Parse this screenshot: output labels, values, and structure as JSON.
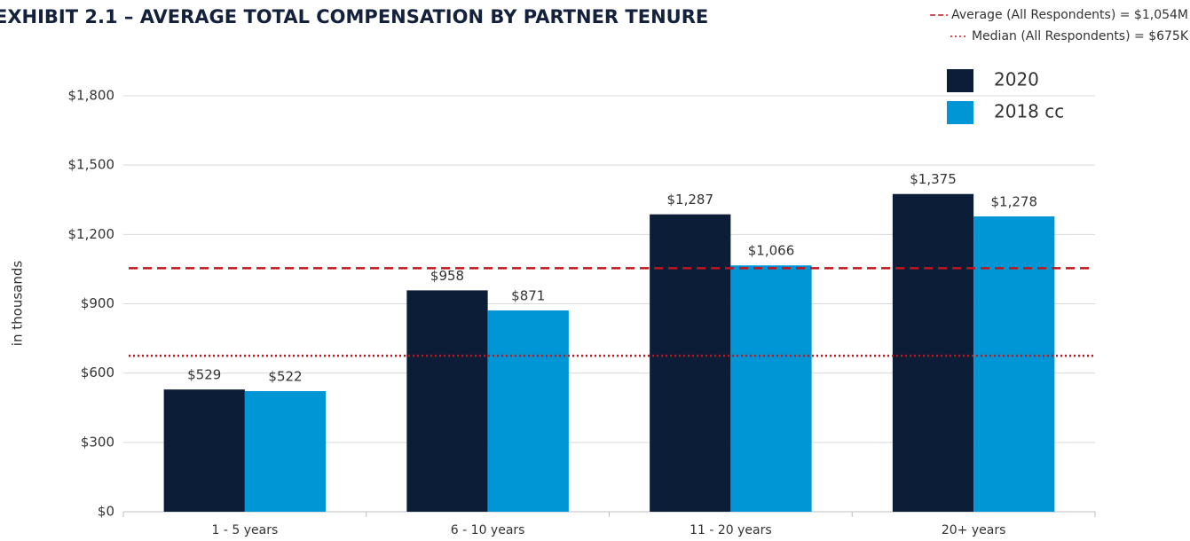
{
  "chart_data": {
    "type": "bar",
    "title": "EXHIBIT 2.1 – AVERAGE TOTAL COMPENSATION BY PARTNER TENURE",
    "y_label": "in thousands",
    "categories": [
      "1 - 5 years",
      "6 - 10 years",
      "11 - 20 years",
      "20+ years"
    ],
    "series": [
      {
        "name": "2020",
        "color": "#0c1d38",
        "values": [
          529,
          958,
          1287,
          1375
        ],
        "value_labels": [
          "$529",
          "$958",
          "$1,287",
          "$1,375"
        ]
      },
      {
        "name": "2018 cc",
        "color": "#0096d6",
        "values": [
          522,
          871,
          1066,
          1278
        ],
        "value_labels": [
          "$522",
          "$871",
          "$1,066",
          "$1,278"
        ]
      }
    ],
    "reference_lines": [
      {
        "label": "Average (All Respondents) = $1,054M",
        "value": 1054,
        "color": "#c0151b",
        "style": "dashed"
      },
      {
        "label": "Median  (All Respondents) = $675K",
        "value": 675,
        "color": "#c0151b",
        "style": "dotted"
      }
    ],
    "ylim": [
      0,
      1800
    ],
    "yticks": [
      {
        "value": 0,
        "label": "$0"
      },
      {
        "value": 300,
        "label": "$300"
      },
      {
        "value": 600,
        "label": "$600"
      },
      {
        "value": 900,
        "label": "$900"
      },
      {
        "value": 1200,
        "label": "$1,200"
      },
      {
        "value": 1500,
        "label": "$1,500"
      },
      {
        "value": 1800,
        "label": "$1,800"
      }
    ],
    "grid": true,
    "legend": "top-right"
  }
}
